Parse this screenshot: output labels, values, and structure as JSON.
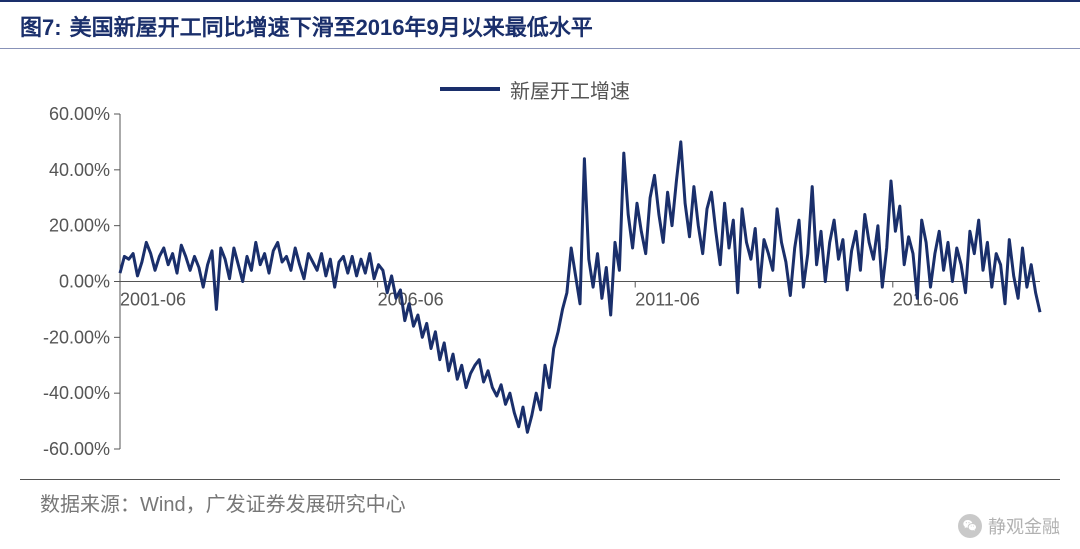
{
  "figure_prefix": "图7:",
  "title": "美国新屋开工同比增速下滑至2016年9月以来最低水平",
  "source_label": "数据来源：",
  "source_value": "Wind，广发证券发展研究中心",
  "watermark": "静观金融",
  "chart": {
    "type": "line",
    "legend_label": "新屋开工增速",
    "line_color": "#1a2f6b",
    "line_width": 3,
    "background_color": "#ffffff",
    "title_color": "#1a2f6b",
    "title_fontsize": 22,
    "label_fontsize": 18,
    "legend_fontsize": 20,
    "y_axis": {
      "min": -60,
      "max": 60,
      "step": 20,
      "suffix": ".00%",
      "ticks": [
        60,
        40,
        20,
        0,
        -20,
        -40,
        -60
      ]
    },
    "x_axis": {
      "labels": [
        "2001-06",
        "2006-06",
        "2011-06",
        "2016-06"
      ],
      "label_positions": [
        0,
        0.28,
        0.56,
        0.84
      ]
    },
    "series": [
      {
        "name": "新屋开工增速",
        "values": [
          3,
          9,
          8,
          10,
          2,
          7,
          14,
          10,
          4,
          9,
          12,
          6,
          10,
          3,
          13,
          9,
          4,
          9,
          5,
          -2,
          6,
          11,
          -10,
          12,
          8,
          1,
          12,
          6,
          0,
          9,
          4,
          14,
          6,
          10,
          3,
          11,
          14,
          7,
          9,
          4,
          12,
          6,
          1,
          10,
          7,
          4,
          10,
          2,
          8,
          -2,
          7,
          9,
          3,
          9,
          2,
          8,
          3,
          10,
          1,
          6,
          4,
          -4,
          2,
          -6,
          -3,
          -14,
          -8,
          -16,
          -12,
          -20,
          -15,
          -24,
          -18,
          -28,
          -22,
          -32,
          -26,
          -35,
          -30,
          -38,
          -33,
          -30,
          -28,
          -36,
          -32,
          -38,
          -41,
          -37,
          -44,
          -40,
          -47,
          -52,
          -45,
          -54,
          -48,
          -40,
          -46,
          -30,
          -38,
          -24,
          -18,
          -10,
          -4,
          12,
          2,
          -8,
          44,
          8,
          -2,
          10,
          -6,
          5,
          -12,
          14,
          4,
          46,
          24,
          12,
          28,
          18,
          10,
          30,
          38,
          24,
          14,
          32,
          20,
          36,
          50,
          28,
          16,
          34,
          20,
          10,
          26,
          32,
          18,
          6,
          28,
          12,
          22,
          -4,
          26,
          14,
          8,
          19,
          -2,
          15,
          10,
          4,
          26,
          14,
          7,
          -5,
          12,
          22,
          -2,
          10,
          34,
          6,
          18,
          0,
          14,
          22,
          8,
          15,
          -3,
          11,
          18,
          4,
          24,
          14,
          8,
          20,
          -2,
          12,
          36,
          18,
          27,
          6,
          16,
          10,
          -6,
          22,
          14,
          -2,
          10,
          18,
          4,
          14,
          0,
          12,
          6,
          -4,
          18,
          10,
          22,
          4,
          14,
          -2,
          10,
          6,
          -8,
          15,
          2,
          -6,
          12,
          -2,
          6,
          -4,
          -11
        ]
      }
    ]
  }
}
